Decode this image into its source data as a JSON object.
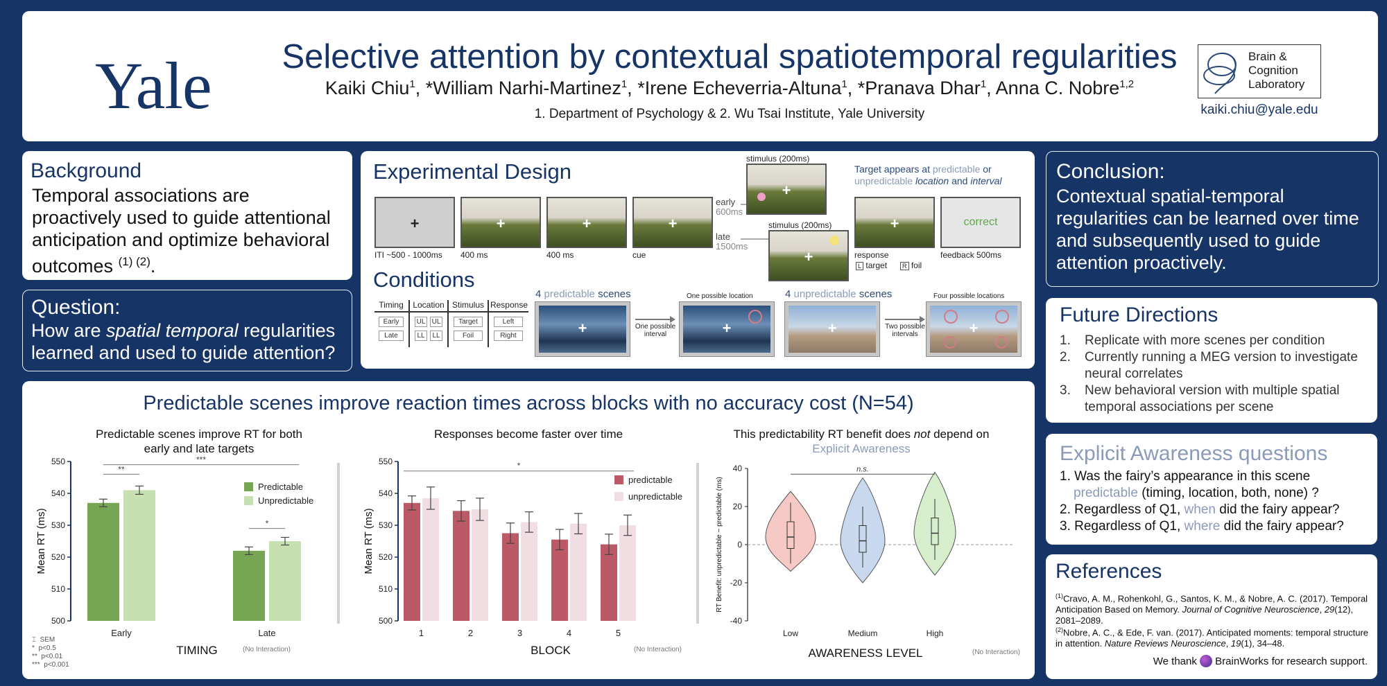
{
  "header": {
    "logo": "Yale",
    "title": "Selective attention by contextual spatiotemporal regularities",
    "authors": [
      {
        "name": "Kaiki Chiu",
        "sup": "1",
        "sep": ", "
      },
      {
        "name": "*William Narhi-Martinez",
        "sup": "1",
        "sep": ", "
      },
      {
        "name": "*Irene Echeverria-Altuna",
        "sup": "1",
        "sep": ", "
      },
      {
        "name": "*Pranava Dhar",
        "sup": "1",
        "sep": ", "
      },
      {
        "name": "Anna C. Nobre",
        "sup": "1,2",
        "sep": ""
      }
    ],
    "affiliations": "1. Department of Psychology & 2. Wu Tsai Institute, Yale University",
    "lab_logo": [
      "Brain &",
      "Cognition",
      "Laboratory"
    ],
    "email": "kaiki.chiu@yale.edu"
  },
  "background": {
    "title": "Background",
    "text": "Temporal associations are proactively used to guide attentional anticipation and optimize behavioral outcomes",
    "refs": "(1) (2)",
    "end": "."
  },
  "question": {
    "title": "Question:",
    "pre": "How are ",
    "emph": "spatial temporal",
    "post": " regularities learned and used to guide attention?"
  },
  "design": {
    "title": "Experimental Design",
    "iti": "ITI ~500 - 1000ms",
    "t400a": "400 ms",
    "t400b": "400 ms",
    "cue": "cue",
    "early": "early",
    "early_ms": "600ms",
    "late": "late",
    "late_ms": "1500ms",
    "stim1": "stimulus (200ms)",
    "stim2": "stimulus (200ms)",
    "target_note_1": "Target appears at ",
    "target_note_2": "predictable",
    "target_note_3": " or",
    "target_note_4": "unpredictable ",
    "target_note_5": "location",
    "target_note_6": " and ",
    "target_note_7": "interval",
    "response": "response",
    "key_l": "L",
    "target": "target",
    "key_r": "R",
    "foil": "foil",
    "feedback_word": "correct",
    "feedback": "feedback 500ms",
    "fixation": "+"
  },
  "conditions": {
    "title": "Conditions",
    "headers": [
      "Timing",
      "Location",
      "Stimulus",
      "Response"
    ],
    "timing": [
      "Early",
      "Late"
    ],
    "location": [
      "UL",
      "UL",
      "LL",
      "LL"
    ],
    "stimulus": [
      "Target",
      "Foil"
    ],
    "response": [
      "Left",
      "Right"
    ],
    "pred_n": "4",
    "pred_label": "predictable",
    "pred_scenes": "scenes",
    "one_loc": "One possible location",
    "one_interval": "One possible interval",
    "unpred_n": "4",
    "unpred_label": "unpredictable",
    "unpred_scenes": "scenes",
    "four_loc": "Four possible locations",
    "two_intervals": "Two possible intervals"
  },
  "conclusion": {
    "title": "Conclusion:",
    "text": "Contextual spatial-temporal regularities can be learned over time and subsequently used to guide attention proactively."
  },
  "future": {
    "title": "Future Directions",
    "items": [
      {
        "n": "1.",
        "text": "Replicate with more scenes per condition"
      },
      {
        "n": "2.",
        "text": "Currently running a MEG version to investigate neural correlates"
      },
      {
        "n": "3.",
        "text": "New behavioral version with multiple spatial temporal associations per scene"
      }
    ]
  },
  "awareness": {
    "title": "Explicit Awareness questions",
    "q1a": "1. Was the fairy’s appearance in this scene",
    "q1b": "predictable",
    "q1c": " (timing, location, both, none) ?",
    "q2a": "2. Regardless of Q1, ",
    "q2b": "when",
    "q2c": " did the fairy appear?",
    "q3a": "3. Regardless of Q1, ",
    "q3b": "where",
    "q3c": " did the fairy appear?"
  },
  "references": {
    "title": "References",
    "r1_sup": "(1)",
    "r1_a": "Cravo, A. M., Rohenkohl, G., Santos, K. M., & Nobre, A. C. (2017). Temporal Anticipation Based on Memory. ",
    "r1_j": "Journal of Cognitive Neuroscience",
    "r1_b": ", ",
    "r1_v": "29",
    "r1_c": "(12), 2081–2089.",
    "r2_sup": "(2)",
    "r2_a": "Nobre, A. C., & Ede, F. van. (2017). Anticipated moments: temporal structure in attention. ",
    "r2_j": "Nature Reviews Neuroscience",
    "r2_b": ", ",
    "r2_v": "19",
    "r2_c": "(1), 34–48.",
    "thanks_a": "We thank ",
    "thanks_b": " BrainWorks for research support."
  },
  "results": {
    "title": "Predictable scenes improve reaction times across blocks with no accuracy cost (N=54)",
    "legend_sem": [
      "SEM",
      "p<0.5",
      "p<0.01",
      "p<0.001"
    ],
    "legend_sym": [
      "⌶",
      "*",
      "**",
      "***"
    ]
  },
  "colors": {
    "navy": "#173466",
    "green_dark": "#76a553",
    "green_light": "#c7e0b1",
    "red_dark": "#bb5a66",
    "red_light": "#f1dee2",
    "violin_low": "#f6c9c4",
    "violin_med": "#c8d8ee",
    "violin_high": "#d6eecb"
  },
  "chart_data": [
    {
      "type": "bar",
      "title": "Predictable scenes improve RT for both early and late targets",
      "xlabel": "TIMING",
      "ylabel": "Mean RT (ms)",
      "ylim": [
        500,
        550
      ],
      "yticks": [
        500,
        510,
        520,
        530,
        540,
        550
      ],
      "categories": [
        "Early",
        "Late"
      ],
      "series": [
        {
          "name": "Predictable",
          "values": [
            537,
            522
          ],
          "sem": [
            1.2,
            1.2
          ]
        },
        {
          "name": "Unpredictable",
          "values": [
            541,
            525
          ],
          "sem": [
            1.3,
            1.2
          ]
        }
      ],
      "significance": [
        {
          "label": "**",
          "between": "Early Predictable vs Unpredictable"
        },
        {
          "label": "***",
          "between": "Early vs Late"
        },
        {
          "label": "*",
          "between": "Late Predictable vs Unpredictable"
        }
      ],
      "note": "(No Interaction)",
      "legend": "right"
    },
    {
      "type": "bar",
      "title": "Responses become faster over time",
      "xlabel": "BLOCK",
      "ylabel": "Mean RT (ms)",
      "ylim": [
        500,
        550
      ],
      "yticks": [
        500,
        510,
        520,
        530,
        540,
        550
      ],
      "categories": [
        "1",
        "2",
        "3",
        "4",
        "5"
      ],
      "series": [
        {
          "name": "predictable",
          "values": [
            537,
            534.5,
            527.5,
            525.5,
            524
          ],
          "sem": [
            2.2,
            3.2,
            3.2,
            3.2,
            3.2
          ]
        },
        {
          "name": "unpredictable",
          "values": [
            538.5,
            535,
            531,
            530.5,
            530
          ],
          "sem": [
            3.5,
            3.5,
            3.2,
            3.2,
            3.2
          ]
        }
      ],
      "significance": [
        {
          "label": "*",
          "between": "Block 1 vs Block 5"
        }
      ],
      "note": "(No Interaction)",
      "legend": "top-right"
    },
    {
      "type": "violin",
      "title_a": "This predictability RT benefit does ",
      "title_b": "not",
      "title_c": " depend on",
      "subtitle": "Explicit Awareness",
      "xlabel": "AWARENESS LEVEL",
      "ylabel": "RT Benefit: unpredictable − predictable (ms)",
      "ylim": [
        -40,
        40
      ],
      "yticks": [
        -40,
        -20,
        0,
        20,
        40
      ],
      "categories": [
        "Low",
        "Medium",
        "High"
      ],
      "medians": [
        4,
        2,
        6
      ],
      "significance": [
        {
          "label": "n.s.",
          "between": "Low vs High"
        }
      ],
      "note": "(No Interaction)"
    }
  ]
}
